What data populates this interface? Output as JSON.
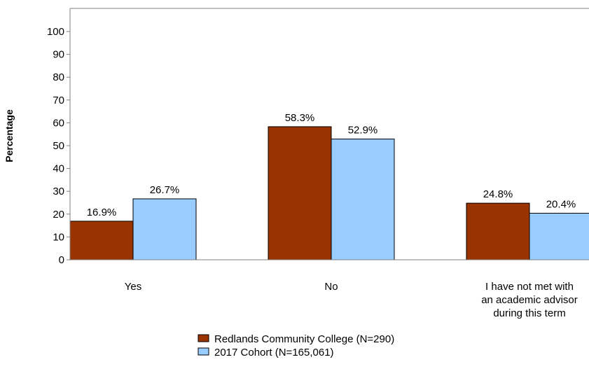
{
  "chart_data": {
    "type": "bar",
    "title": "",
    "xlabel": "",
    "ylabel": "Percentage",
    "ylim": [
      0,
      100
    ],
    "yticks": [
      0,
      10,
      20,
      30,
      40,
      50,
      60,
      70,
      80,
      90,
      100
    ],
    "categories": [
      [
        "Yes"
      ],
      [
        "No"
      ],
      [
        "I have not met with",
        "an academic advisor",
        "during this term"
      ]
    ],
    "series": [
      {
        "name": "Redlands Community College (N=290)",
        "color": "#993300",
        "values": [
          16.9,
          58.3,
          24.8
        ],
        "labels": [
          "16.9%",
          "58.3%",
          "24.8%"
        ]
      },
      {
        "name": "2017 Cohort (N=165,061)",
        "color": "#99ccff",
        "values": [
          26.7,
          52.9,
          20.4
        ],
        "labels": [
          "26.7%",
          "52.9%",
          "20.4%"
        ]
      }
    ],
    "grid": false,
    "legend_position": "bottom"
  }
}
